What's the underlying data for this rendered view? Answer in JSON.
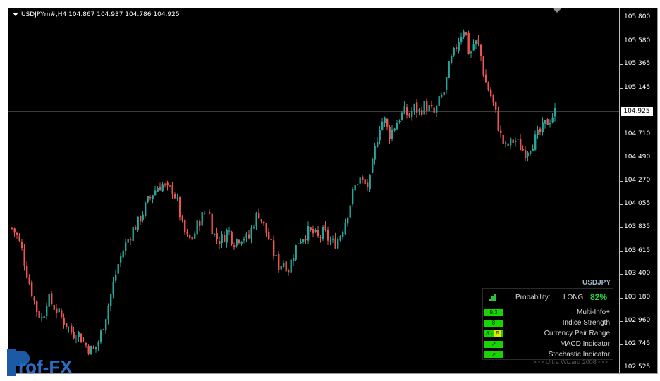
{
  "header": {
    "symbol_info": "USDJPYm#,H4  104.867 104.937 104.786 104.925"
  },
  "price_axis": {
    "ticks": [
      "105.800",
      "105.580",
      "105.365",
      "105.145",
      "104.710",
      "104.490",
      "104.270",
      "104.055",
      "103.835",
      "103.615",
      "103.400",
      "103.180",
      "102.960",
      "102.745",
      "102.525"
    ],
    "current_price": "104.925"
  },
  "indicator_panel": {
    "symbol": "USDJPY",
    "probability_label": "Probability:",
    "direction": "LONG",
    "probability_value": "82%",
    "rows": [
      {
        "badge": "9.3",
        "name": "Multi-Info+"
      },
      {
        "badge": "8",
        "name": "Indice Strength"
      },
      {
        "badge_a": "8",
        "badge_sep": "-",
        "badge_b": "5",
        "name": "Currency Pair Range"
      },
      {
        "badge": "↗",
        "name": "MACD Indicator"
      },
      {
        "badge": "↗",
        "name": "Stochastic Indicator"
      }
    ],
    "credit": ">>>  Ultra Wizard 2008  <<<"
  },
  "watermark": {
    "text": "rof-FX"
  },
  "colors": {
    "background": "#000000",
    "bull": "#26a69a",
    "bear": "#ef5350",
    "accent_green": "#22d13a",
    "grid_line": "#9aa3ad"
  },
  "chart_data": {
    "type": "candlestick",
    "symbol": "USDJPYm#",
    "timeframe": "H4",
    "ylim": [
      102.5,
      105.86
    ],
    "current_price": 104.925,
    "close_path": [
      103.83,
      103.76,
      103.62,
      103.4,
      103.22,
      103.05,
      102.98,
      103.18,
      103.12,
      103.05,
      102.98,
      102.92,
      102.84,
      102.86,
      102.78,
      102.72,
      102.68,
      102.74,
      102.9,
      103.08,
      103.28,
      103.48,
      103.62,
      103.72,
      103.82,
      103.88,
      103.98,
      104.08,
      104.16,
      104.22,
      104.24,
      104.18,
      104.2,
      104.05,
      103.82,
      103.72,
      103.74,
      103.88,
      103.96,
      104.02,
      103.78,
      103.72,
      103.74,
      103.82,
      103.7,
      103.74,
      103.76,
      103.72,
      103.88,
      103.98,
      103.86,
      103.74,
      103.6,
      103.48,
      103.52,
      103.45,
      103.6,
      103.72,
      103.76,
      103.8,
      103.78,
      103.73,
      103.8,
      103.72,
      103.68,
      103.74,
      103.86,
      104.02,
      104.2,
      104.3,
      104.24,
      104.22,
      104.52,
      104.78,
      104.86,
      104.7,
      104.78,
      104.86,
      104.92,
      104.88,
      104.96,
      104.92,
      104.98,
      104.95,
      104.9,
      105.02,
      105.12,
      105.36,
      105.48,
      105.62,
      105.72,
      105.44,
      105.58,
      105.52,
      105.22,
      105.1,
      104.95,
      104.72,
      104.58,
      104.62,
      104.66,
      104.6,
      104.54,
      104.6,
      104.66,
      104.72,
      104.8,
      104.85,
      104.92
    ]
  }
}
